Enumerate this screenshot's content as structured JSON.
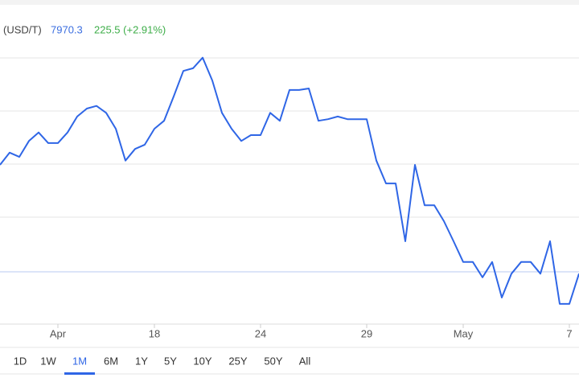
{
  "header": {
    "unit": "(USD/T)",
    "price": "7970.3",
    "change": "225.5 (+2.91%)"
  },
  "chart_data": {
    "type": "line",
    "color": "#2f66e6",
    "categories": [
      null,
      null,
      null,
      null,
      null,
      null,
      "Apr",
      null,
      null,
      null,
      null,
      null,
      null,
      null,
      null,
      null,
      "18",
      null,
      null,
      null,
      null,
      null,
      null,
      null,
      null,
      null,
      null,
      "24",
      null,
      null,
      null,
      null,
      null,
      null,
      null,
      null,
      null,
      null,
      "29",
      null,
      null,
      null,
      null,
      null,
      null,
      null,
      null,
      null,
      "May",
      null,
      null,
      null,
      null,
      null,
      null,
      null,
      null,
      null,
      null,
      "7",
      null
    ],
    "values": [
      7940,
      7963,
      7955,
      7985,
      8001,
      7981,
      7981,
      8001,
      8031,
      8046,
      8051,
      8038,
      8008,
      7948,
      7970,
      7978,
      8008,
      8023,
      8069,
      8117,
      8122,
      8142,
      8099,
      8038,
      8008,
      7985,
      7996,
      7996,
      8038,
      8023,
      8081,
      8081,
      8084,
      8023,
      8026,
      8031,
      8026,
      8026,
      8026,
      7948,
      7905,
      7905,
      7796,
      7940,
      7864,
      7864,
      7834,
      7796,
      7757,
      7757,
      7728,
      7757,
      7690,
      7735,
      7757,
      7757,
      7735,
      7796,
      7678,
      7678,
      7735
    ],
    "ylim": [
      7640,
      8240
    ]
  },
  "range_buttons": [
    "1D",
    "1W",
    "1M",
    "6M",
    "1Y",
    "5Y",
    "10Y",
    "25Y",
    "50Y",
    "All"
  ],
  "selected_range": 2
}
